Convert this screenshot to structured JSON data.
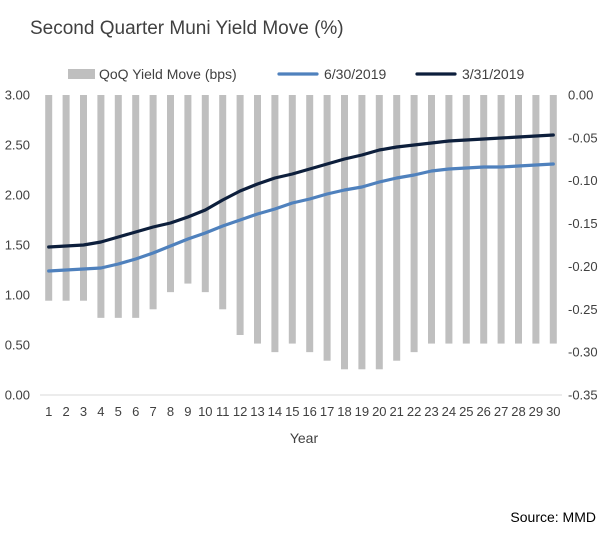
{
  "title": "Second Quarter Muni Yield Move (%)",
  "source": "Source: MMD",
  "chart_data": {
    "type": "bar",
    "title": "Second Quarter Muni Yield Move (%)",
    "xlabel": "Year",
    "ylabel": "",
    "categories": [
      "1",
      "2",
      "3",
      "4",
      "5",
      "6",
      "7",
      "8",
      "9",
      "10",
      "11",
      "12",
      "13",
      "14",
      "15",
      "16",
      "17",
      "18",
      "19",
      "20",
      "21",
      "22",
      "23",
      "24",
      "25",
      "26",
      "27",
      "28",
      "29",
      "30"
    ],
    "grid": false,
    "legend_position": "top",
    "left_axis": {
      "ylim": [
        0,
        3
      ],
      "ticks": [
        "0.00",
        "0.50",
        "1.00",
        "1.50",
        "2.00",
        "2.50",
        "3.00"
      ]
    },
    "right_axis": {
      "ylim": [
        -0.35,
        0
      ],
      "ticks": [
        "0.00",
        "-0.05",
        "-0.10",
        "-0.15",
        "-0.20",
        "-0.25",
        "-0.30",
        "-0.35"
      ]
    },
    "series": [
      {
        "name": "QoQ Yield Move (bps)",
        "type": "bar",
        "axis": "right",
        "color": "#bfbfbf",
        "values": [
          -0.24,
          -0.24,
          -0.24,
          -0.26,
          -0.26,
          -0.26,
          -0.25,
          -0.23,
          -0.22,
          -0.23,
          -0.25,
          -0.28,
          -0.29,
          -0.3,
          -0.29,
          -0.3,
          -0.31,
          -0.32,
          -0.32,
          -0.32,
          -0.31,
          -0.3,
          -0.29,
          -0.29,
          -0.29,
          -0.29,
          -0.29,
          -0.29,
          -0.29,
          -0.29
        ]
      },
      {
        "name": "6/30/2019",
        "type": "line",
        "axis": "left",
        "color": "#4f81bd",
        "values": [
          1.24,
          1.25,
          1.26,
          1.27,
          1.31,
          1.36,
          1.42,
          1.49,
          1.56,
          1.62,
          1.69,
          1.75,
          1.81,
          1.86,
          1.92,
          1.96,
          2.01,
          2.05,
          2.08,
          2.13,
          2.17,
          2.2,
          2.24,
          2.26,
          2.27,
          2.28,
          2.28,
          2.29,
          2.3,
          2.31
        ]
      },
      {
        "name": "3/31/2019",
        "type": "line",
        "axis": "left",
        "color": "#0d1f3c",
        "values": [
          1.48,
          1.49,
          1.5,
          1.53,
          1.58,
          1.63,
          1.68,
          1.72,
          1.78,
          1.85,
          1.95,
          2.04,
          2.11,
          2.17,
          2.21,
          2.26,
          2.31,
          2.36,
          2.4,
          2.45,
          2.48,
          2.5,
          2.52,
          2.54,
          2.55,
          2.56,
          2.57,
          2.58,
          2.59,
          2.6
        ]
      }
    ]
  }
}
